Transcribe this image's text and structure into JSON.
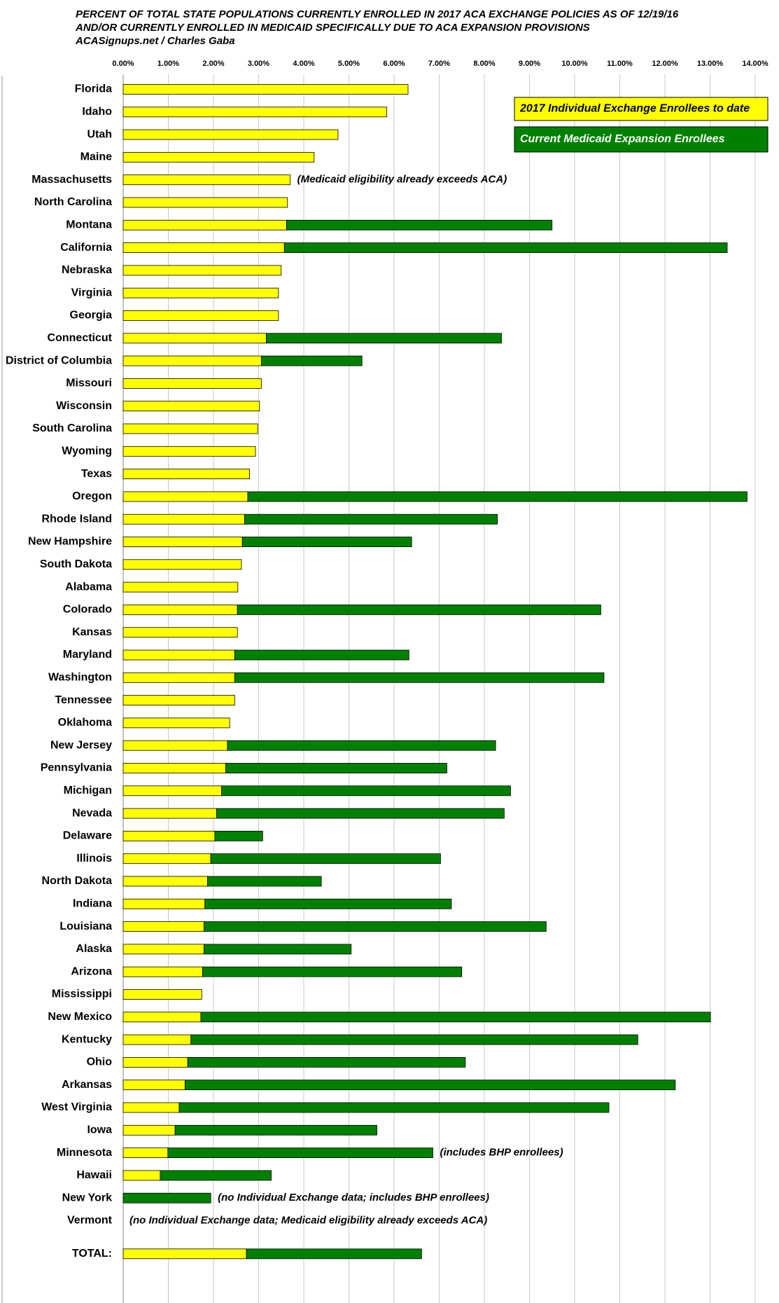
{
  "chart_data": {
    "type": "stacked-bar-horizontal",
    "title_lines": [
      "PERCENT OF TOTAL STATE POPULATIONS CURRENTLY ENROLLED IN 2017 ACA EXCHANGE POLICIES AS OF 12/19/16",
      "AND/OR CURRENTLY ENROLLED IN MEDICAID SPECIFICALLY DUE TO ACA EXPANSION PROVISIONS",
      "ACASignups.net / Charles Gaba"
    ],
    "categories": [
      "Florida",
      "Idaho",
      "Utah",
      "Maine",
      "Massachusetts",
      "North Carolina",
      "Montana",
      "California",
      "Nebraska",
      "Virginia",
      "Georgia",
      "Connecticut",
      "District of Columbia",
      "Missouri",
      "Wisconsin",
      "South Carolina",
      "Wyoming",
      "Texas",
      "Oregon",
      "Rhode Island",
      "New Hampshire",
      "South Dakota",
      "Alabama",
      "Colorado",
      "Kansas",
      "Maryland",
      "Washington",
      "Tennessee",
      "Oklahoma",
      "New Jersey",
      "Pennsylvania",
      "Michigan",
      "Nevada",
      "Delaware",
      "Illinois",
      "North Dakota",
      "Indiana",
      "Louisiana",
      "Alaska",
      "Arizona",
      "Mississippi",
      "New Mexico",
      "Kentucky",
      "Ohio",
      "Arkansas",
      "West Virginia",
      "Iowa",
      "Minnesota",
      "Hawaii",
      "New York",
      "Vermont",
      "TOTAL:"
    ],
    "series": [
      {
        "name": "2017 Individual Exchange Enrollees to date",
        "color": "#ffff00",
        "values": [
          6.31,
          5.84,
          4.76,
          4.23,
          3.7,
          3.64,
          3.62,
          3.57,
          3.5,
          3.44,
          3.44,
          3.17,
          3.06,
          3.06,
          3.02,
          2.98,
          2.93,
          2.8,
          2.76,
          2.69,
          2.64,
          2.62,
          2.54,
          2.53,
          2.53,
          2.47,
          2.47,
          2.47,
          2.36,
          2.31,
          2.27,
          2.18,
          2.07,
          2.03,
          1.94,
          1.87,
          1.81,
          1.79,
          1.79,
          1.76,
          1.74,
          1.72,
          1.5,
          1.43,
          1.37,
          1.24,
          1.15,
          0.99,
          0.82,
          null,
          null,
          2.73
        ]
      },
      {
        "name": "Current Medicaid Expansion Enrollees",
        "color": "#008000",
        "values": [
          null,
          null,
          null,
          null,
          null,
          null,
          5.88,
          9.81,
          null,
          null,
          null,
          5.21,
          2.23,
          null,
          null,
          null,
          null,
          null,
          11.06,
          5.6,
          3.75,
          null,
          null,
          8.05,
          null,
          3.86,
          8.18,
          null,
          null,
          5.94,
          4.9,
          6.4,
          6.37,
          1.06,
          5.09,
          2.52,
          5.46,
          7.58,
          3.26,
          5.74,
          null,
          11.29,
          9.9,
          6.15,
          10.86,
          9.52,
          4.47,
          5.87,
          2.46,
          1.94,
          null,
          3.88
        ]
      }
    ],
    "annotations": [
      {
        "category": "Massachusetts",
        "text": "(Medicaid eligibility already exceeds ACA)"
      },
      {
        "category": "Minnesota",
        "text": "(includes BHP enrollees)"
      },
      {
        "category": "New York",
        "text": "(no Individual Exchange data; includes BHP enrollees)"
      },
      {
        "category": "Vermont",
        "text": "(no Individual Exchange data; Medicaid eligibility already exceeds ACA)"
      }
    ],
    "xlim": [
      0,
      14
    ],
    "xticks": [
      {
        "value": 0,
        "label": "0.00%"
      },
      {
        "value": 1,
        "label": "1.00%"
      },
      {
        "value": 2,
        "label": "2.00%"
      },
      {
        "value": 3,
        "label": "3.00%"
      },
      {
        "value": 4,
        "label": "4.00%"
      },
      {
        "value": 5,
        "label": "5.00%"
      },
      {
        "value": 6,
        "label": "6.00%"
      },
      {
        "value": 7,
        "label": "7.00%"
      },
      {
        "value": 8,
        "label": "8.00%"
      },
      {
        "value": 9,
        "label": "9.00%"
      },
      {
        "value": 10,
        "label": "10.00%"
      },
      {
        "value": 11,
        "label": "11.00%"
      },
      {
        "value": 12,
        "label": "12.00%"
      },
      {
        "value": 13,
        "label": "13.00%"
      },
      {
        "value": 14,
        "label": "14.00%"
      }
    ],
    "grid": true,
    "legend": "top-right"
  }
}
